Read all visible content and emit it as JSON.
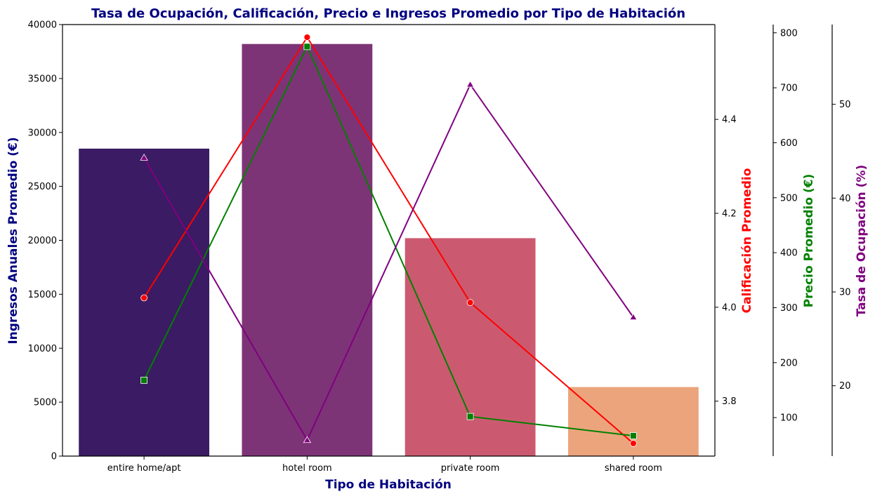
{
  "chart_data": {
    "type": "bar",
    "title": "Tasa de Ocupación, Calificación, Precio e Ingresos Promedio por Tipo de Habitación",
    "xlabel": "Tipo de Habitación",
    "categories": [
      "entire home/apt",
      "hotel room",
      "private room",
      "shared room"
    ],
    "bar_colors": [
      "#3b1b63",
      "#7d3476",
      "#cb5a70",
      "#eca47c"
    ],
    "title_color": "#000080",
    "grid": false,
    "axes": {
      "income": {
        "label": "Ingresos Anuales Promedio (€)",
        "color": "#000080",
        "ylim": [
          0,
          40000
        ],
        "ticks": [
          0,
          5000,
          10000,
          15000,
          20000,
          25000,
          30000,
          35000,
          40000
        ]
      },
      "rating": {
        "label": "Calificación Promedio",
        "color": "#ff0000",
        "ylim": [
          3.683,
          4.602
        ],
        "ticks": [
          3.8,
          4.0,
          4.2,
          4.4
        ]
      },
      "price": {
        "label": "Precio Promedio (€)",
        "color": "#008000",
        "ylim": [
          30,
          815
        ],
        "ticks": [
          100,
          200,
          300,
          400,
          500,
          600,
          700,
          800
        ]
      },
      "occupancy": {
        "label": "Tasa de Ocupación (%)",
        "color": "#800080",
        "ylim": [
          12.5,
          58.5
        ],
        "ticks": [
          20,
          30,
          40,
          50
        ]
      }
    },
    "series": [
      {
        "axis": "income",
        "kind": "bar",
        "values": [
          28500,
          38200,
          20200,
          6400
        ]
      },
      {
        "axis": "rating",
        "kind": "line",
        "marker": "circle",
        "color": "#ff0000",
        "values": [
          4.02,
          4.575,
          4.01,
          3.71
        ]
      },
      {
        "axis": "price",
        "kind": "line",
        "marker": "square",
        "color": "#008000",
        "values": [
          168,
          775,
          102,
          67
        ]
      },
      {
        "axis": "occupancy",
        "kind": "line",
        "marker": "triangle",
        "color": "#800080",
        "values": [
          44.3,
          14.2,
          52.1,
          27.3
        ]
      }
    ]
  }
}
